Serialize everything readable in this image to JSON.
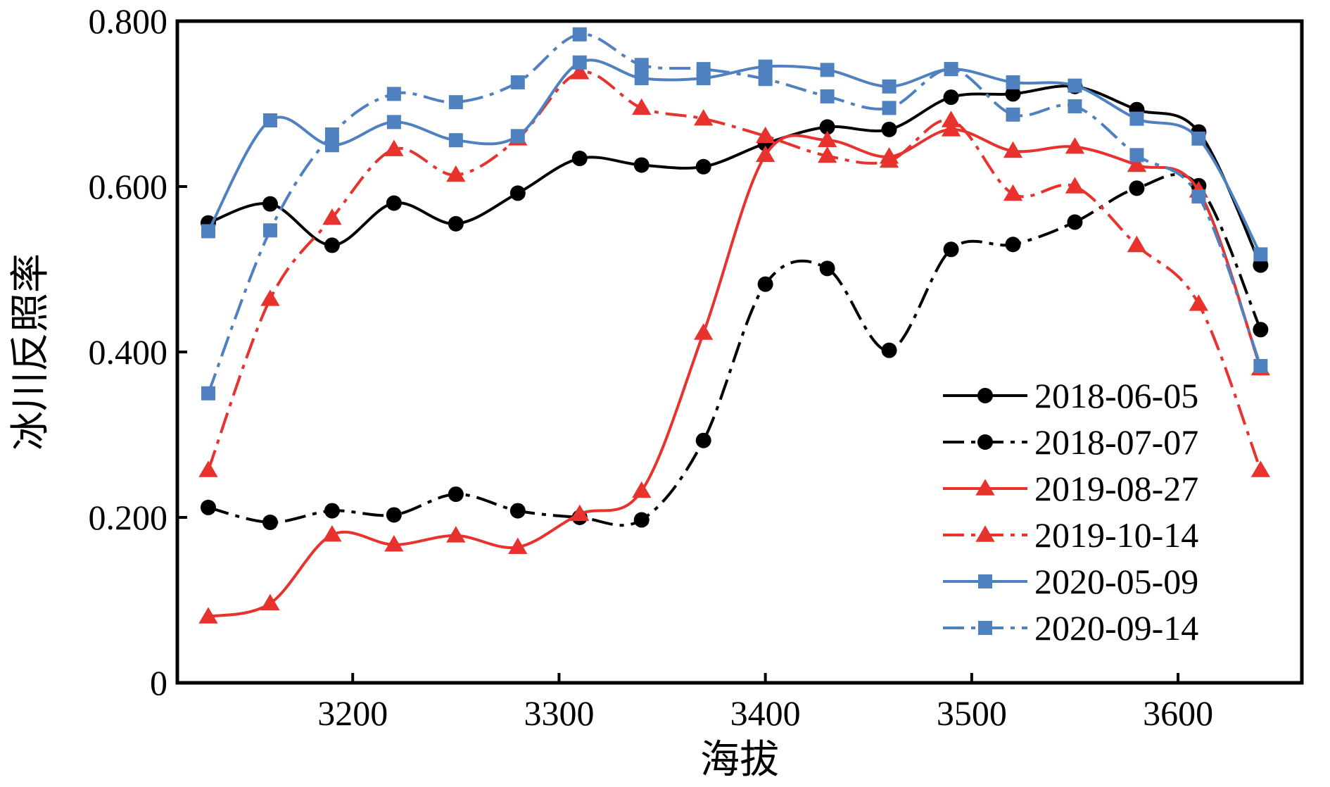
{
  "chart_data": {
    "type": "line",
    "xlabel": "海拔",
    "ylabel": "冰川反照率",
    "xlim": [
      3115,
      3660
    ],
    "ylim": [
      0,
      0.8
    ],
    "x_ticks": [
      3200,
      3300,
      3400,
      3500,
      3600
    ],
    "x_tick_labels": [
      "3200",
      "3300",
      "3400",
      "3500",
      "3600"
    ],
    "y_ticks": [
      0,
      0.2,
      0.4,
      0.6,
      0.8
    ],
    "y_tick_labels": [
      "0",
      "0.200",
      "0.400",
      "0.600",
      "0.800"
    ],
    "grid": false,
    "legend_position": "bottom-right",
    "x": [
      3130,
      3160,
      3190,
      3220,
      3250,
      3280,
      3310,
      3340,
      3370,
      3400,
      3430,
      3460,
      3490,
      3520,
      3550,
      3580,
      3610,
      3640
    ],
    "series": [
      {
        "name": "2018-06-05",
        "color": "#000000",
        "dash": "solid",
        "marker": "circle",
        "values": [
          0.556,
          0.579,
          0.529,
          0.58,
          0.555,
          0.592,
          0.634,
          0.626,
          0.624,
          0.652,
          0.672,
          0.669,
          0.708,
          0.712,
          0.721,
          0.693,
          0.666,
          0.505
        ]
      },
      {
        "name": "2018-07-07",
        "color": "#000000",
        "dash": "dashdot",
        "marker": "circle",
        "values": [
          0.212,
          0.194,
          0.208,
          0.203,
          0.228,
          0.208,
          0.2,
          0.197,
          0.293,
          0.482,
          0.501,
          0.402,
          0.524,
          0.53,
          0.557,
          0.598,
          0.601,
          0.427
        ]
      },
      {
        "name": "2019-08-27",
        "color": "#e8322d",
        "dash": "solid",
        "marker": "triangle",
        "values": [
          0.08,
          0.096,
          0.179,
          0.167,
          0.178,
          0.164,
          0.204,
          0.232,
          0.423,
          0.638,
          0.656,
          0.636,
          0.669,
          0.643,
          0.648,
          0.626,
          0.595,
          0.38
        ]
      },
      {
        "name": "2019-10-14",
        "color": "#e8322d",
        "dash": "dashdot",
        "marker": "triangle",
        "values": [
          0.257,
          0.464,
          0.562,
          0.645,
          0.614,
          0.658,
          0.738,
          0.695,
          0.682,
          0.661,
          0.637,
          0.631,
          0.68,
          0.591,
          0.6,
          0.529,
          0.458,
          0.257
        ]
      },
      {
        "name": "2020-05-09",
        "color": "#4f80c0",
        "dash": "solid",
        "marker": "square",
        "values": [
          0.546,
          0.68,
          0.65,
          0.678,
          0.656,
          0.661,
          0.75,
          0.731,
          0.731,
          0.745,
          0.741,
          0.721,
          0.742,
          0.726,
          0.722,
          0.682,
          0.658,
          0.518
        ]
      },
      {
        "name": "2020-09-14",
        "color": "#4f80c0",
        "dash": "dashdot",
        "marker": "square",
        "values": [
          0.35,
          0.547,
          0.663,
          0.712,
          0.702,
          0.726,
          0.784,
          0.747,
          0.742,
          0.73,
          0.709,
          0.695,
          0.742,
          0.687,
          0.697,
          0.638,
          0.588,
          0.383
        ]
      }
    ]
  }
}
